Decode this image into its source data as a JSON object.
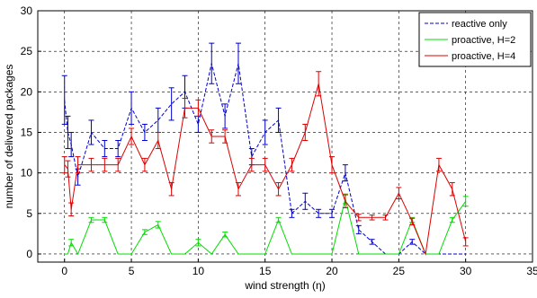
{
  "chart_data": {
    "type": "line",
    "xlabel": "wind strength (η)",
    "ylabel": "number of delivered packages",
    "xlim": [
      -2,
      35
    ],
    "ylim": [
      -1,
      30
    ],
    "xticks": [
      0,
      5,
      10,
      15,
      20,
      25,
      30,
      35
    ],
    "yticks": [
      0,
      5,
      10,
      15,
      20,
      25,
      30
    ],
    "grid": true,
    "error_bars": true,
    "legend_position": "top-right",
    "series": [
      {
        "name": "reactive only",
        "color": "#0000cc",
        "dash": "dashed",
        "x": [
          0,
          0.25,
          0.5,
          1,
          2,
          3,
          4,
          5,
          6,
          7,
          8,
          9,
          10,
          11,
          12,
          13,
          14,
          15,
          16,
          17,
          18,
          19,
          20,
          21,
          22,
          23,
          24,
          25,
          26,
          27,
          28,
          29,
          30
        ],
        "y": [
          19,
          15,
          13.5,
          9.5,
          15,
          13,
          13,
          18,
          15,
          16.5,
          18.5,
          20,
          16,
          23.5,
          17,
          23.5,
          12,
          15,
          16.5,
          5,
          6.5,
          5,
          5,
          10,
          3,
          1.5,
          0,
          0,
          1.5,
          0,
          0,
          0,
          0
        ],
        "err": [
          3,
          2,
          1.5,
          1,
          1.5,
          1,
          1,
          2,
          1,
          1.5,
          2,
          2,
          1,
          2.5,
          1.5,
          2.5,
          1,
          1.5,
          1.5,
          0.5,
          1,
          0.5,
          0.5,
          1,
          0.5,
          0.3,
          0,
          0,
          0.3,
          0,
          0,
          0,
          0
        ]
      },
      {
        "name": "proactive, H=2",
        "color": "#00dd00",
        "dash": "solid",
        "x": [
          0,
          0.25,
          0.5,
          1,
          2,
          3,
          4,
          5,
          6,
          7,
          8,
          9,
          10,
          11,
          12,
          13,
          14,
          15,
          16,
          17,
          18,
          19,
          20,
          21,
          22,
          23,
          24,
          25,
          26,
          27,
          28,
          29,
          30
        ],
        "y": [
          0,
          0,
          1.4,
          0,
          4.2,
          4.2,
          0,
          0,
          2.7,
          3.6,
          0,
          0,
          1.4,
          0,
          2.4,
          0,
          0,
          0,
          4.2,
          0,
          0,
          0,
          0,
          6.8,
          0,
          0,
          0,
          0,
          4.2,
          0,
          0,
          4.2,
          6.5
        ],
        "err": [
          0,
          0,
          0.4,
          0,
          0.3,
          0.3,
          0,
          0,
          0.3,
          0.4,
          0,
          0,
          0.4,
          0,
          0.3,
          0,
          0,
          0,
          0.3,
          0,
          0,
          0,
          0,
          0.6,
          0,
          0,
          0,
          0,
          0.3,
          0,
          0,
          0.3,
          0.6
        ]
      },
      {
        "name": "proactive, H=4",
        "color": "#dd0000",
        "dash": "solid",
        "x": [
          0,
          0.25,
          0.5,
          1,
          2,
          3,
          4,
          5,
          6,
          7,
          8,
          9,
          10,
          11,
          12,
          13,
          14,
          15,
          16,
          17,
          18,
          19,
          20,
          21,
          22,
          23,
          24,
          25,
          26,
          27,
          28,
          29,
          30
        ],
        "y": [
          11,
          10.5,
          5.5,
          11,
          11,
          11,
          11,
          14.5,
          11,
          14,
          8,
          18,
          18,
          14.5,
          14.5,
          8,
          11,
          11,
          8,
          11,
          15,
          21,
          11,
          6.5,
          4.5,
          4.5,
          4.5,
          7.5,
          4,
          0,
          11,
          8,
          1.5
        ],
        "err": [
          1,
          1,
          0.8,
          1,
          0.8,
          0.8,
          0.8,
          1,
          0.8,
          1,
          0.8,
          1.2,
          1,
          0.8,
          0.8,
          0.8,
          0.8,
          0.8,
          0.8,
          0.8,
          1,
          1.5,
          1,
          0.8,
          0.4,
          0.3,
          0.3,
          0.7,
          0.4,
          0,
          0.8,
          0.8,
          0.5
        ]
      }
    ]
  }
}
